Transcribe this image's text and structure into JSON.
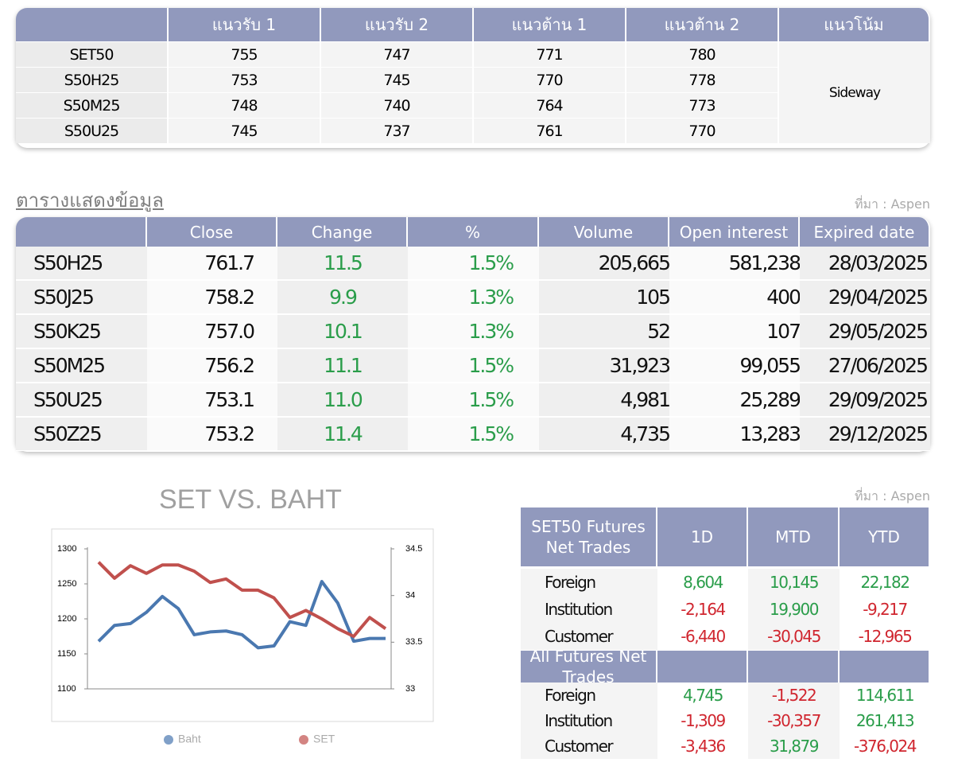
{
  "support_table": {
    "columns": [
      "แนวรับ 1",
      "แนวรับ 2",
      "แนวต้าน 1",
      "แนวต้าน 2",
      "แนวโน้ม"
    ],
    "rows": [
      [
        "SET50",
        "755",
        "747",
        "771",
        "780"
      ],
      [
        "S50H25",
        "753",
        "745",
        "770",
        "778"
      ],
      [
        "S50M25",
        "748",
        "740",
        "764",
        "773"
      ],
      [
        "S50U25",
        "745",
        "737",
        "761",
        "770"
      ]
    ],
    "trend": "Sideway"
  },
  "data_table": {
    "title": "ตารางแสดงข้อมูล",
    "source": "ที่มา : Aspen",
    "columns": [
      "Close",
      "Change",
      "%",
      "Volume",
      "Open interest",
      "Expired date"
    ],
    "rows": [
      [
        "S50H25",
        "761.7",
        "11.5",
        "1.5%",
        "205,665",
        "581,238",
        "28/03/2025"
      ],
      [
        "S50J25",
        "758.2",
        "9.9",
        "1.3%",
        "105",
        "400",
        "29/04/2025"
      ],
      [
        "S50K25",
        "757.0",
        "10.1",
        "1.3%",
        "52",
        "107",
        "29/05/2025"
      ],
      [
        "S50M25",
        "756.2",
        "11.1",
        "1.5%",
        "31,923",
        "99,055",
        "27/06/2025"
      ],
      [
        "S50U25",
        "753.1",
        "11.0",
        "1.5%",
        "4,981",
        "25,289",
        "29/09/2025"
      ],
      [
        "S50Z25",
        "753.2",
        "11.4",
        "1.5%",
        "4,735",
        "13,283",
        "29/12/2025"
      ]
    ]
  },
  "chart_data": {
    "type": "line",
    "title": "SET VS. BAHT",
    "categories": [
      null,
      null,
      null,
      null,
      null,
      null,
      null,
      null,
      null,
      null,
      null,
      null,
      null,
      null,
      null,
      null,
      null,
      null,
      null
    ],
    "series": [
      {
        "name": "Baht",
        "color": "#4a78b0",
        "axis": "y2",
        "values": [
          33.51,
          33.68,
          33.7,
          33.82,
          33.99,
          33.86,
          33.58,
          33.61,
          33.62,
          33.58,
          33.44,
          33.46,
          33.72,
          33.68,
          34.15,
          33.92,
          33.51,
          33.54,
          33.54
        ]
      },
      {
        "name": "SET",
        "color": "#c0504d",
        "values": [
          1281,
          1258,
          1276,
          1265,
          1277,
          1277,
          1268,
          1252,
          1257,
          1241,
          1241,
          1230,
          1202,
          1212,
          1200,
          1186,
          1175,
          1202,
          1186
        ]
      }
    ],
    "ylim": [
      1100,
      1300
    ],
    "yticks": [
      1100,
      1150,
      1200,
      1250,
      1300
    ],
    "y2lim": [
      33,
      34.5
    ],
    "y2ticks": [
      33,
      33.5,
      34,
      34.5
    ]
  },
  "net_trades": {
    "source": "ที่มา : Aspen",
    "columns": [
      "1D",
      "MTD",
      "YTD"
    ],
    "sections": [
      {
        "title": "SET50 Futures Net Trades",
        "rows": [
          [
            "Foreign",
            "8,604",
            "10,145",
            "22,182"
          ],
          [
            "Institution",
            "-2,164",
            "19,900",
            "-9,217"
          ],
          [
            "Customer",
            "-6,440",
            "-30,045",
            "-12,965"
          ]
        ]
      },
      {
        "title": "All Futures Net Trades",
        "rows": [
          [
            "Foreign",
            "4,745",
            "-1,522",
            "114,611"
          ],
          [
            "Institution",
            "-1,309",
            "-30,357",
            "261,413"
          ],
          [
            "Customer",
            "-3,436",
            "31,879",
            "-376,024"
          ]
        ]
      }
    ]
  }
}
